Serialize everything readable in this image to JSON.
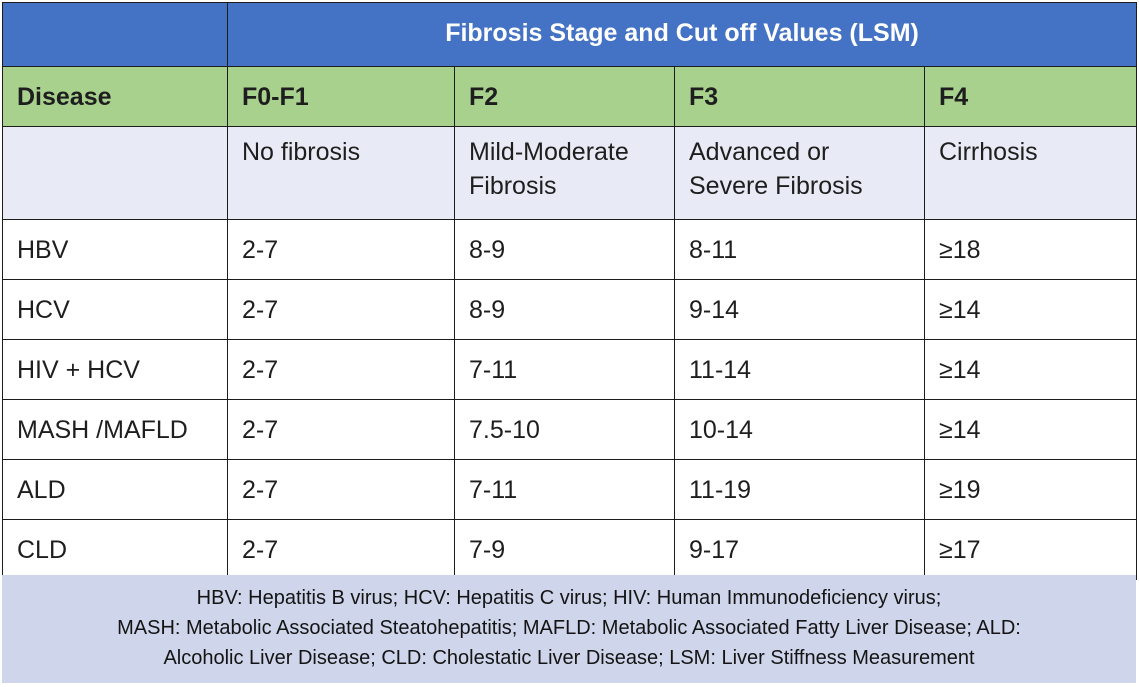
{
  "title": "Fibrosis Stage and Cut off Values  (LSM)",
  "header": {
    "disease": "Disease",
    "f0f1": "F0-F1",
    "f2": "F2",
    "f3": "F3",
    "f4": "F4"
  },
  "descriptions": {
    "f0f1": "No fibrosis",
    "f2": [
      "Mild-Moderate",
      "Fibrosis"
    ],
    "f3": [
      "Advanced or",
      "Severe Fibrosis"
    ],
    "f4": "Cirrhosis"
  },
  "rows": [
    {
      "disease": "HBV",
      "f0f1": "2-7",
      "f2": "8-9",
      "f3": "8-11",
      "f4": "≥18"
    },
    {
      "disease": "HCV",
      "f0f1": "2-7",
      "f2": "8-9",
      "f3": "9-14",
      "f4": "≥14"
    },
    {
      "disease": "HIV + HCV",
      "f0f1": "2-7",
      "f2": "7-11",
      "f3": "11-14",
      "f4": "≥14"
    },
    {
      "disease": "MASH /MAFLD",
      "f0f1": "2-7",
      "f2": "7.5-10",
      "f3": "10-14",
      "f4": "≥14"
    },
    {
      "disease": "ALD",
      "f0f1": "2-7",
      "f2": "7-11",
      "f3": "11-19",
      "f4": "≥19"
    },
    {
      "disease": "CLD",
      "f0f1": "2-7",
      "f2": "7-9",
      "f3": "9-17",
      "f4": "≥17"
    }
  ],
  "footnote": [
    "HBV: Hepatitis B virus; HCV: Hepatitis C virus; HIV: Human Immunodeficiency virus;",
    "MASH: Metabolic Associated Steatohepatitis; MAFLD: Metabolic Associated Fatty Liver Disease; ALD:",
    "Alcoholic Liver Disease; CLD: Cholestatic Liver Disease; LSM: Liver Stiffness Measurement"
  ],
  "colors": {
    "title_bg": "#4472c4",
    "header_bg": "#a9d18e",
    "desc_bg": "#e8ebf5",
    "footnote_bg": "#cfd5ea"
  }
}
